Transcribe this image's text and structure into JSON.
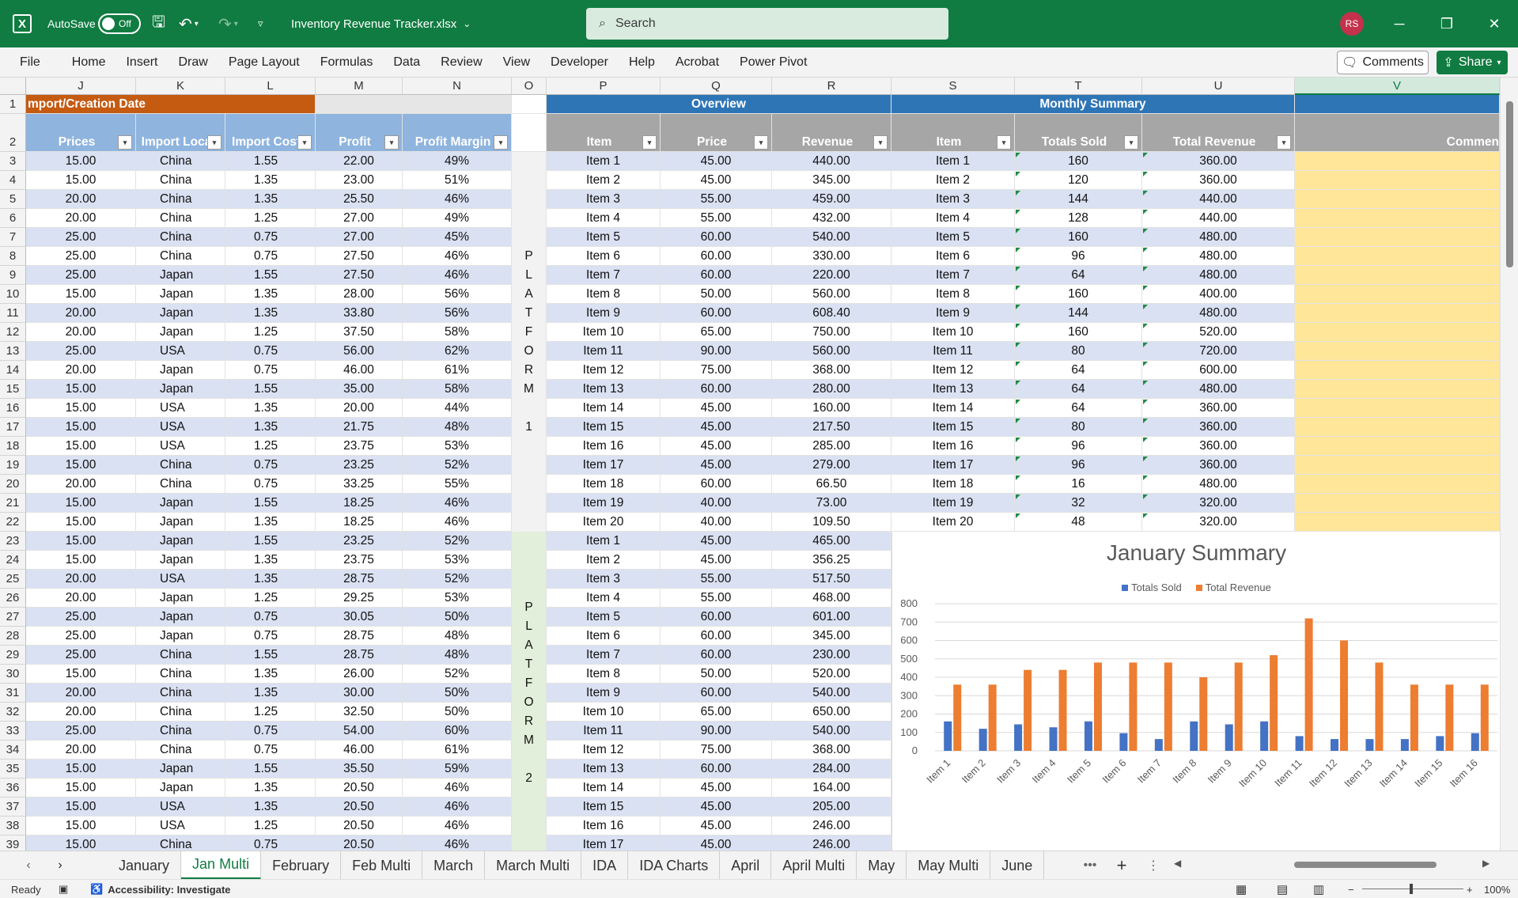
{
  "titlebar": {
    "autosave_label": "AutoSave",
    "autosave_state": "Off",
    "doc_title": "Inventory Revenue Tracker.xlsx",
    "search_placeholder": "Search",
    "user_initials": "RS"
  },
  "menu": {
    "items": [
      "File",
      "Home",
      "Insert",
      "Draw",
      "Page Layout",
      "Formulas",
      "Data",
      "Review",
      "View",
      "Developer",
      "Help",
      "Acrobat",
      "Power Pivot"
    ],
    "comments_label": "Comments",
    "share_label": "Share"
  },
  "columns": [
    "J",
    "K",
    "L",
    "M",
    "N",
    "O",
    "P",
    "Q",
    "R",
    "S",
    "T",
    "U",
    "V"
  ],
  "row_numbers": [
    1,
    2,
    3,
    4,
    5,
    6,
    7,
    8,
    9,
    10,
    11,
    12,
    13,
    14,
    15,
    16,
    17,
    18,
    19,
    20,
    21,
    22,
    23,
    24,
    25,
    26,
    27,
    28,
    29,
    30,
    31,
    32,
    33,
    34,
    35,
    36,
    37,
    38,
    39
  ],
  "sections": {
    "import_header": "mport/Creation Date",
    "overview": "Overview",
    "monthly_summary": "Monthly Summary"
  },
  "headers": {
    "prices": "Prices",
    "import_loca": "Import Loca",
    "import_cost": "Import Cost",
    "profit": "Profit",
    "profit_margin": "Profit Margin",
    "item": "Item",
    "price": "Price",
    "revenue": "Revenue",
    "item2": "Item",
    "totals_sold": "Totals Sold",
    "total_revenue": "Total Revenue",
    "comments": "Commen"
  },
  "platform1_letters": [
    "P",
    "L",
    "A",
    "T",
    "F",
    "O",
    "R",
    "M",
    "",
    "1"
  ],
  "platform2_letters": [
    "P",
    "L",
    "A",
    "T",
    "F",
    "O",
    "R",
    "M",
    "",
    "2"
  ],
  "left_rows": [
    [
      "15.00",
      "China",
      "1.55",
      "22.00",
      "49%"
    ],
    [
      "15.00",
      "China",
      "1.35",
      "23.00",
      "51%"
    ],
    [
      "20.00",
      "China",
      "1.35",
      "25.50",
      "46%"
    ],
    [
      "20.00",
      "China",
      "1.25",
      "27.00",
      "49%"
    ],
    [
      "25.00",
      "China",
      "0.75",
      "27.00",
      "45%"
    ],
    [
      "25.00",
      "China",
      "0.75",
      "27.50",
      "46%"
    ],
    [
      "25.00",
      "Japan",
      "1.55",
      "27.50",
      "46%"
    ],
    [
      "15.00",
      "Japan",
      "1.35",
      "28.00",
      "56%"
    ],
    [
      "20.00",
      "Japan",
      "1.35",
      "33.80",
      "56%"
    ],
    [
      "20.00",
      "Japan",
      "1.25",
      "37.50",
      "58%"
    ],
    [
      "25.00",
      "USA",
      "0.75",
      "56.00",
      "62%"
    ],
    [
      "20.00",
      "Japan",
      "0.75",
      "46.00",
      "61%"
    ],
    [
      "15.00",
      "Japan",
      "1.55",
      "35.00",
      "58%"
    ],
    [
      "15.00",
      "USA",
      "1.35",
      "20.00",
      "44%"
    ],
    [
      "15.00",
      "USA",
      "1.35",
      "21.75",
      "48%"
    ],
    [
      "15.00",
      "USA",
      "1.25",
      "23.75",
      "53%"
    ],
    [
      "15.00",
      "China",
      "0.75",
      "23.25",
      "52%"
    ],
    [
      "20.00",
      "China",
      "0.75",
      "33.25",
      "55%"
    ],
    [
      "15.00",
      "Japan",
      "1.55",
      "18.25",
      "46%"
    ],
    [
      "15.00",
      "Japan",
      "1.35",
      "18.25",
      "46%"
    ],
    [
      "15.00",
      "Japan",
      "1.55",
      "23.25",
      "52%"
    ],
    [
      "15.00",
      "Japan",
      "1.35",
      "23.75",
      "53%"
    ],
    [
      "20.00",
      "USA",
      "1.35",
      "28.75",
      "52%"
    ],
    [
      "20.00",
      "Japan",
      "1.25",
      "29.25",
      "53%"
    ],
    [
      "25.00",
      "Japan",
      "0.75",
      "30.05",
      "50%"
    ],
    [
      "25.00",
      "Japan",
      "0.75",
      "28.75",
      "48%"
    ],
    [
      "25.00",
      "China",
      "1.55",
      "28.75",
      "48%"
    ],
    [
      "15.00",
      "China",
      "1.35",
      "26.00",
      "52%"
    ],
    [
      "20.00",
      "China",
      "1.35",
      "30.00",
      "50%"
    ],
    [
      "20.00",
      "China",
      "1.25",
      "32.50",
      "50%"
    ],
    [
      "25.00",
      "China",
      "0.75",
      "54.00",
      "60%"
    ],
    [
      "20.00",
      "China",
      "0.75",
      "46.00",
      "61%"
    ],
    [
      "15.00",
      "Japan",
      "1.55",
      "35.50",
      "59%"
    ],
    [
      "15.00",
      "Japan",
      "1.35",
      "20.50",
      "46%"
    ],
    [
      "15.00",
      "USA",
      "1.35",
      "20.50",
      "46%"
    ],
    [
      "15.00",
      "USA",
      "1.25",
      "20.50",
      "46%"
    ],
    [
      "15.00",
      "China",
      "0.75",
      "20.50",
      "46%"
    ]
  ],
  "overview_rows": [
    [
      "Item 1",
      "45.00",
      "440.00"
    ],
    [
      "Item 2",
      "45.00",
      "345.00"
    ],
    [
      "Item 3",
      "55.00",
      "459.00"
    ],
    [
      "Item 4",
      "55.00",
      "432.00"
    ],
    [
      "Item 5",
      "60.00",
      "540.00"
    ],
    [
      "Item 6",
      "60.00",
      "330.00"
    ],
    [
      "Item 7",
      "60.00",
      "220.00"
    ],
    [
      "Item 8",
      "50.00",
      "560.00"
    ],
    [
      "Item 9",
      "60.00",
      "608.40"
    ],
    [
      "Item 10",
      "65.00",
      "750.00"
    ],
    [
      "Item 11",
      "90.00",
      "560.00"
    ],
    [
      "Item 12",
      "75.00",
      "368.00"
    ],
    [
      "Item 13",
      "60.00",
      "280.00"
    ],
    [
      "Item 14",
      "45.00",
      "160.00"
    ],
    [
      "Item 15",
      "45.00",
      "217.50"
    ],
    [
      "Item 16",
      "45.00",
      "285.00"
    ],
    [
      "Item 17",
      "45.00",
      "279.00"
    ],
    [
      "Item 18",
      "60.00",
      "66.50"
    ],
    [
      "Item 19",
      "40.00",
      "73.00"
    ],
    [
      "Item 20",
      "40.00",
      "109.50"
    ],
    [
      "Item 1",
      "45.00",
      "465.00"
    ],
    [
      "Item 2",
      "45.00",
      "356.25"
    ],
    [
      "Item 3",
      "55.00",
      "517.50"
    ],
    [
      "Item 4",
      "55.00",
      "468.00"
    ],
    [
      "Item 5",
      "60.00",
      "601.00"
    ],
    [
      "Item 6",
      "60.00",
      "345.00"
    ],
    [
      "Item 7",
      "60.00",
      "230.00"
    ],
    [
      "Item 8",
      "50.00",
      "520.00"
    ],
    [
      "Item 9",
      "60.00",
      "540.00"
    ],
    [
      "Item 10",
      "65.00",
      "650.00"
    ],
    [
      "Item 11",
      "90.00",
      "540.00"
    ],
    [
      "Item 12",
      "75.00",
      "368.00"
    ],
    [
      "Item 13",
      "60.00",
      "284.00"
    ],
    [
      "Item 14",
      "45.00",
      "164.00"
    ],
    [
      "Item 15",
      "45.00",
      "205.00"
    ],
    [
      "Item 16",
      "45.00",
      "246.00"
    ],
    [
      "Item 17",
      "45.00",
      "246.00"
    ]
  ],
  "summary_rows": [
    [
      "Item 1",
      "160",
      "360.00"
    ],
    [
      "Item 2",
      "120",
      "360.00"
    ],
    [
      "Item 3",
      "144",
      "440.00"
    ],
    [
      "Item 4",
      "128",
      "440.00"
    ],
    [
      "Item 5",
      "160",
      "480.00"
    ],
    [
      "Item 6",
      "96",
      "480.00"
    ],
    [
      "Item 7",
      "64",
      "480.00"
    ],
    [
      "Item 8",
      "160",
      "400.00"
    ],
    [
      "Item 9",
      "144",
      "480.00"
    ],
    [
      "Item 10",
      "160",
      "520.00"
    ],
    [
      "Item 11",
      "80",
      "720.00"
    ],
    [
      "Item 12",
      "64",
      "600.00"
    ],
    [
      "Item 13",
      "64",
      "480.00"
    ],
    [
      "Item 14",
      "64",
      "360.00"
    ],
    [
      "Item 15",
      "80",
      "360.00"
    ],
    [
      "Item 16",
      "96",
      "360.00"
    ],
    [
      "Item 17",
      "96",
      "360.00"
    ],
    [
      "Item 18",
      "16",
      "480.00"
    ],
    [
      "Item 19",
      "32",
      "320.00"
    ],
    [
      "Item 20",
      "48",
      "320.00"
    ]
  ],
  "chart_data": {
    "type": "bar",
    "title": "January Summary",
    "categories": [
      "Item 1",
      "Item 2",
      "Item 3",
      "Item 4",
      "Item 5",
      "Item 6",
      "Item 7",
      "Item 8",
      "Item 9",
      "Item 10",
      "Item 11",
      "Item 12",
      "Item 13",
      "Item 14",
      "Item 15",
      "Item 16"
    ],
    "series": [
      {
        "name": "Totals Sold",
        "color": "#4472c4",
        "values": [
          160,
          120,
          144,
          128,
          160,
          96,
          64,
          160,
          144,
          160,
          80,
          64,
          64,
          64,
          80,
          96
        ]
      },
      {
        "name": "Total Revenue",
        "color": "#ed7d31",
        "values": [
          360,
          360,
          440,
          440,
          480,
          480,
          480,
          400,
          480,
          520,
          720,
          600,
          480,
          360,
          360,
          360
        ]
      }
    ],
    "yticks": [
      "0",
      "100",
      "200",
      "300",
      "400",
      "500",
      "600",
      "700",
      "800"
    ],
    "ylim": [
      0,
      800
    ],
    "grid": true,
    "legend": "top"
  },
  "tabs": [
    "January",
    "Jan Multi",
    "February",
    "Feb Multi",
    "March",
    "March Multi",
    "IDA",
    "IDA Charts",
    "April",
    "April Multi",
    "May",
    "May Multi",
    "June"
  ],
  "active_tab": "Jan Multi",
  "status": {
    "ready": "Ready",
    "accessibility": "Accessibility: Investigate",
    "zoom": "100%"
  },
  "colors": {
    "excel_green": "#107c41",
    "band_blue": "#d9e1f2",
    "import_header_orange": "#c55a11",
    "section_blue": "#2e75b6",
    "comments_yellow": "#ffe699"
  }
}
